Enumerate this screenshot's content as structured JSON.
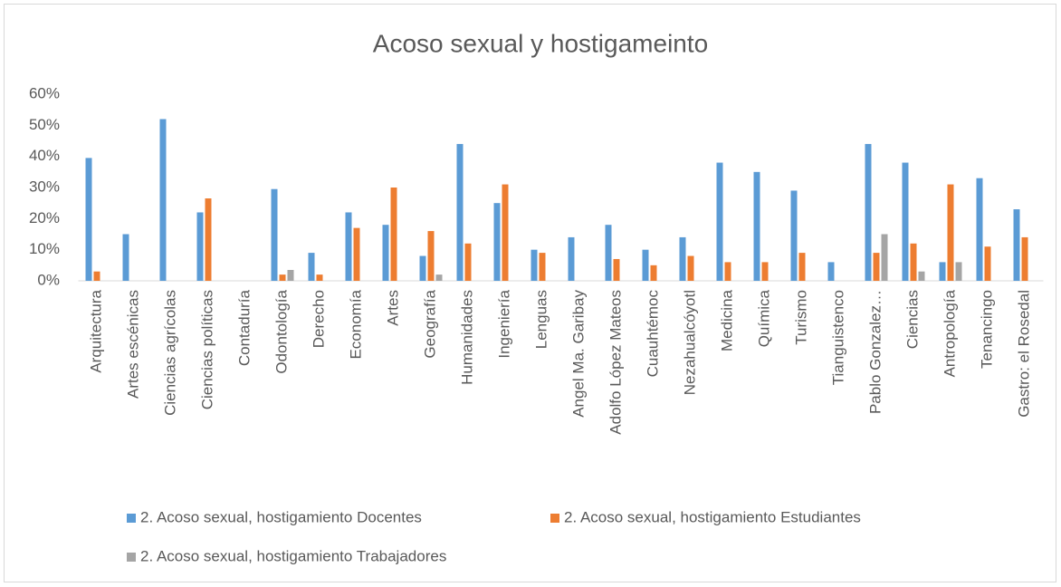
{
  "chart_data": {
    "type": "bar",
    "title": "Acoso sexual y hostigameinto",
    "categories": [
      "Arquitectura",
      "Artes escénicas",
      "Ciencias agrícolas",
      "Ciencias políticas",
      "Contaduría",
      "Odontología",
      "Derecho",
      "Economía",
      "Artes",
      "Geografía",
      "Humanidades",
      "Ingeniería",
      "Lenguas",
      "Angel Ma. Garibay",
      "Adolfo López Mateos",
      "Cuauhtémoc",
      "Nezahualcóyotl",
      "Medicina",
      "Química",
      "Turismo",
      "Tianguistenco",
      "Pablo Gonzalez…",
      "Ciencias",
      "Antropología",
      "Tenancingo",
      "Gastro: el Rosedal"
    ],
    "series": [
      {
        "name": "2. Acoso sexual, hostigamiento Docentes",
        "color": "#5b9bd5",
        "values": [
          39.5,
          15,
          52,
          22,
          0,
          29.5,
          9,
          22,
          18,
          8,
          44,
          25,
          10,
          14,
          18,
          10,
          14,
          38,
          35,
          29,
          6,
          44,
          38,
          6,
          33,
          23
        ]
      },
      {
        "name": "2. Acoso sexual, hostigamiento Estudiantes",
        "color": "#ed7d31",
        "values": [
          3,
          0,
          0,
          26.5,
          0,
          2,
          2,
          17,
          30,
          16,
          12,
          31,
          9,
          0,
          7,
          5,
          8,
          6,
          6,
          9,
          0,
          9,
          12,
          31,
          11,
          14
        ]
      },
      {
        "name": "2. Acoso sexual, hostigamiento Trabajadores",
        "color": "#a5a5a5",
        "values": [
          0,
          0,
          0,
          0,
          0,
          3.5,
          0,
          0,
          0,
          2,
          0,
          0,
          0,
          0,
          0,
          0,
          0,
          0,
          0,
          0,
          0,
          15,
          3,
          6,
          0,
          0
        ]
      }
    ],
    "ylim": [
      0,
      60
    ],
    "yticks": [
      {
        "value": 0,
        "label": "0%"
      },
      {
        "value": 10,
        "label": "10%"
      },
      {
        "value": 20,
        "label": "20%"
      },
      {
        "value": 30,
        "label": "30%"
      },
      {
        "value": 40,
        "label": "40%"
      },
      {
        "value": 50,
        "label": "50%"
      },
      {
        "value": 60,
        "label": "60%"
      }
    ],
    "grid": false,
    "legend": "bottom"
  }
}
